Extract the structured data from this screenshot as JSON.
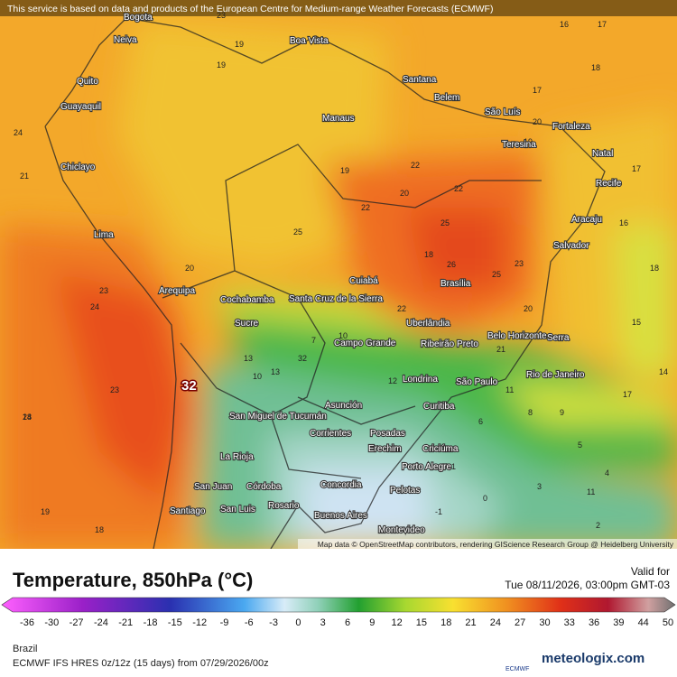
{
  "header": {
    "notice": "This service is based on data and products of the European Centre for Medium-range Weather Forecasts (ECMWF)"
  },
  "map": {
    "cities": [
      "Bogota",
      "Neiva",
      "Boa Vista",
      "Quito",
      "Santana",
      "Belem",
      "Guayaquil",
      "Manaus",
      "São Luís",
      "Fortaleza",
      "Teresina",
      "Natal",
      "Chiclayo",
      "Recife",
      "Aracaju",
      "Lima",
      "Salvador",
      "Cuiabá",
      "Brasília",
      "Arequipa",
      "Cochabamba",
      "Santa Cruz de la Sierra",
      "Sucre",
      "Uberlândia",
      "Belo Horizonte",
      "Serra",
      "Campo Grande",
      "Ribeirão Preto",
      "Rio de Janeiro",
      "Londrina",
      "São Paulo",
      "Asunción",
      "Curitiba",
      "San Miguel de Tucumán",
      "Corrientes",
      "Posadas",
      "Erechim",
      "Criciúma",
      "La Rioja",
      "Porto Alegre",
      "San Juan",
      "Córdoba",
      "Concordia",
      "Pelotas",
      "Rosario",
      "Santiago",
      "San Luis",
      "Buenos Aires",
      "Montevideo"
    ],
    "temperatures": [
      19,
      19,
      17,
      18,
      17,
      17,
      16,
      15,
      18,
      18,
      19,
      20,
      22,
      21,
      22,
      23,
      24,
      25,
      26,
      25,
      23,
      22,
      21,
      20,
      23,
      24,
      25,
      24,
      23,
      20,
      22,
      19,
      18,
      13,
      11,
      12,
      10,
      9,
      8,
      6,
      5,
      4,
      3,
      2,
      1,
      0,
      -1,
      14,
      11,
      19,
      16,
      20,
      32,
      17,
      18,
      13,
      10,
      7
    ],
    "max_label": "32",
    "attribution": "Map data © OpenStreetMap contributors, rendering GIScience Research Group @ Heidelberg University"
  },
  "legend": {
    "title": "Temperature, 850hPa (°C)",
    "valid_label": "Valid for",
    "valid_time": "Tue 08/11/2026, 03:00pm GMT-03",
    "ticks": [
      -36,
      -30,
      -27,
      -24,
      -21,
      -18,
      -15,
      -12,
      -9,
      -6,
      -3,
      0,
      3,
      6,
      9,
      12,
      15,
      18,
      21,
      24,
      27,
      30,
      33,
      36,
      39,
      44,
      50
    ]
  },
  "footer": {
    "region": "Brazil",
    "model": "ECMWF IFS HRES 0z/12z (15 days) from 07/29/2026/00z",
    "ecmwf": "ECMWF",
    "brand": "meteologix.com"
  }
}
